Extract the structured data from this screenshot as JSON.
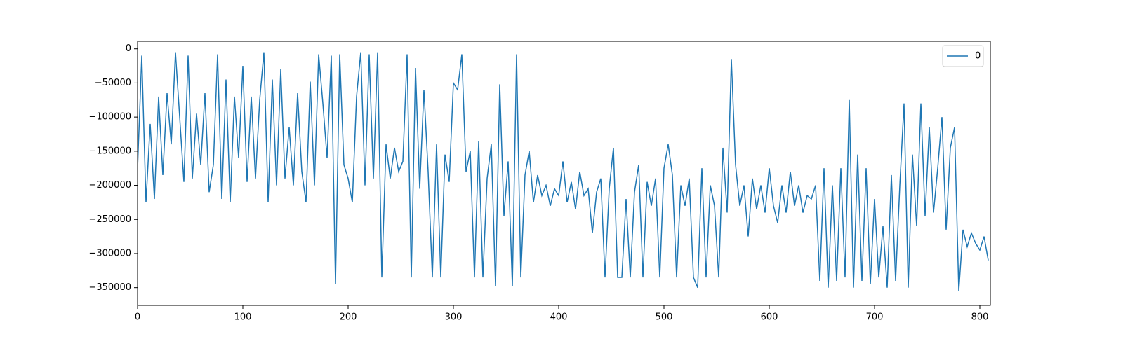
{
  "chart_data": {
    "type": "line",
    "x": [
      0,
      4,
      8,
      12,
      16,
      20,
      24,
      28,
      32,
      36,
      40,
      44,
      48,
      52,
      56,
      60,
      64,
      68,
      72,
      76,
      80,
      84,
      88,
      92,
      96,
      100,
      104,
      108,
      112,
      116,
      120,
      124,
      128,
      132,
      136,
      140,
      144,
      148,
      152,
      156,
      160,
      164,
      168,
      172,
      176,
      180,
      184,
      188,
      192,
      196,
      200,
      204,
      208,
      212,
      216,
      220,
      224,
      228,
      232,
      236,
      240,
      244,
      248,
      252,
      256,
      260,
      264,
      268,
      272,
      276,
      280,
      284,
      288,
      292,
      296,
      300,
      304,
      308,
      312,
      316,
      320,
      324,
      328,
      332,
      336,
      340,
      344,
      348,
      352,
      356,
      360,
      364,
      368,
      372,
      376,
      380,
      384,
      388,
      392,
      396,
      400,
      404,
      408,
      412,
      416,
      420,
      424,
      428,
      432,
      436,
      440,
      444,
      448,
      452,
      456,
      460,
      464,
      468,
      472,
      476,
      480,
      484,
      488,
      492,
      496,
      500,
      504,
      508,
      512,
      516,
      520,
      524,
      528,
      532,
      536,
      540,
      544,
      548,
      552,
      556,
      560,
      564,
      568,
      572,
      576,
      580,
      584,
      588,
      592,
      596,
      600,
      604,
      608,
      612,
      616,
      620,
      624,
      628,
      632,
      636,
      640,
      644,
      648,
      652,
      656,
      660,
      664,
      668,
      672,
      676,
      680,
      684,
      688,
      692,
      696,
      700,
      704,
      708,
      712,
      716,
      720,
      724,
      728,
      732,
      736,
      740,
      744,
      748,
      752,
      756,
      760,
      764,
      768,
      772,
      776,
      780,
      784,
      788,
      792,
      796,
      800,
      804,
      808
    ],
    "series": [
      {
        "name": "0",
        "color": "#1f77b4",
        "values": [
          -175000,
          -10000,
          -225000,
          -110000,
          -220000,
          -70000,
          -185000,
          -65000,
          -140000,
          -5000,
          -100000,
          -195000,
          -10000,
          -190000,
          -95000,
          -170000,
          -65000,
          -210000,
          -170000,
          -8000,
          -220000,
          -45000,
          -225000,
          -70000,
          -160000,
          -25000,
          -195000,
          -70000,
          -190000,
          -75000,
          -5000,
          -225000,
          -45000,
          -200000,
          -30000,
          -190000,
          -115000,
          -200000,
          -65000,
          -180000,
          -225000,
          -48000,
          -200000,
          -8000,
          -80000,
          -160000,
          -10000,
          -345000,
          -8000,
          -170000,
          -190000,
          -225000,
          -70000,
          -5000,
          -200000,
          -8000,
          -190000,
          -5000,
          -335000,
          -140000,
          -190000,
          -145000,
          -180000,
          -165000,
          -8000,
          -335000,
          -28000,
          -205000,
          -60000,
          -180000,
          -335000,
          -140000,
          -335000,
          -155000,
          -195000,
          -50000,
          -60000,
          -8000,
          -180000,
          -150000,
          -335000,
          -135000,
          -335000,
          -190000,
          -140000,
          -348000,
          -52000,
          -245000,
          -165000,
          -348000,
          -8000,
          -335000,
          -185000,
          -150000,
          -225000,
          -185000,
          -215000,
          -200000,
          -230000,
          -205000,
          -215000,
          -165000,
          -225000,
          -195000,
          -235000,
          -180000,
          -215000,
          -205000,
          -270000,
          -210000,
          -190000,
          -335000,
          -205000,
          -145000,
          -335000,
          -335000,
          -220000,
          -335000,
          -210000,
          -170000,
          -335000,
          -195000,
          -230000,
          -190000,
          -335000,
          -175000,
          -140000,
          -185000,
          -335000,
          -200000,
          -230000,
          -190000,
          -335000,
          -350000,
          -175000,
          -335000,
          -200000,
          -230000,
          -335000,
          -145000,
          -240000,
          -15000,
          -170000,
          -230000,
          -200000,
          -275000,
          -190000,
          -235000,
          -200000,
          -240000,
          -175000,
          -230000,
          -255000,
          -200000,
          -240000,
          -180000,
          -230000,
          -200000,
          -240000,
          -215000,
          -220000,
          -200000,
          -340000,
          -175000,
          -350000,
          -200000,
          -340000,
          -175000,
          -335000,
          -75000,
          -350000,
          -155000,
          -340000,
          -175000,
          -345000,
          -220000,
          -335000,
          -260000,
          -350000,
          -185000,
          -340000,
          -200000,
          -80000,
          -350000,
          -155000,
          -260000,
          -80000,
          -245000,
          -115000,
          -240000,
          -175000,
          -100000,
          -265000,
          -145000,
          -115000,
          -355000,
          -265000,
          -290000,
          -270000,
          -285000,
          -295000,
          -275000,
          -310000
        ]
      }
    ],
    "xlim": [
      0,
      810
    ],
    "ylim": [
      -376000,
      11000
    ],
    "xticks": [
      0,
      100,
      200,
      300,
      400,
      500,
      600,
      700,
      800
    ],
    "yticks": [
      0,
      {
        "value": -50000,
        "label": "−50000"
      },
      {
        "value": -100000,
        "label": "−100000"
      },
      {
        "value": -150000,
        "label": "−150000"
      },
      {
        "value": -200000,
        "label": "−200000"
      },
      {
        "value": -250000,
        "label": "−250000"
      },
      {
        "value": -300000,
        "label": "−300000"
      },
      {
        "value": -350000,
        "label": "−350000"
      }
    ],
    "legend": "upper right"
  }
}
